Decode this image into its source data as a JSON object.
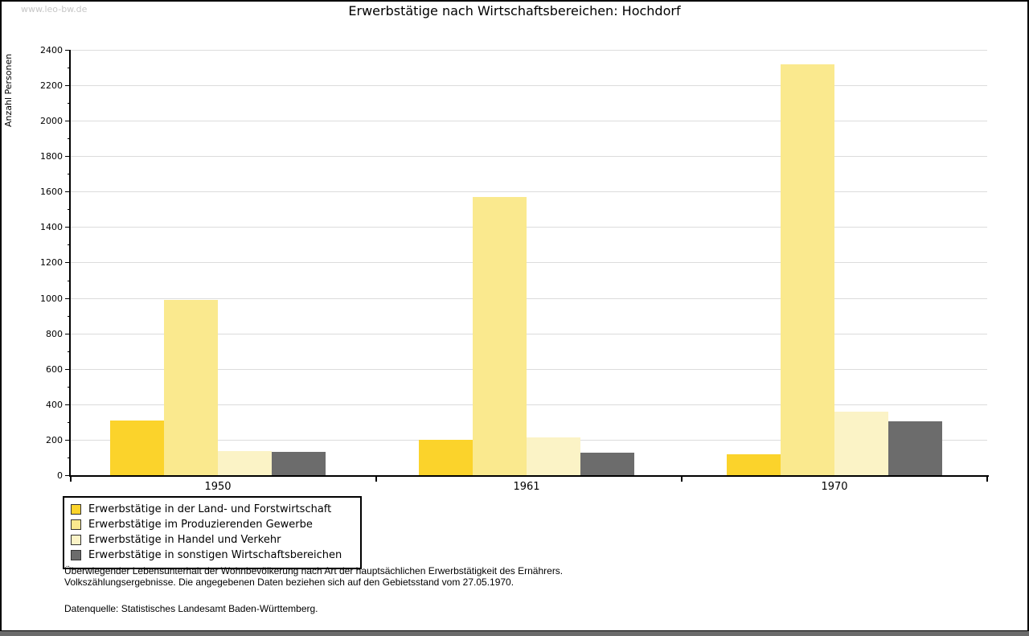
{
  "watermark": "www.leo-bw.de",
  "title": "Erwerbstätige nach Wirtschaftsbereichen: Hochdorf",
  "chart_data": {
    "type": "bar",
    "title": "Erwerbstätige nach Wirtschaftsbereichen: Hochdorf",
    "xlabel": "",
    "ylabel": "Anzahl Personen",
    "ylim": [
      0,
      2400
    ],
    "ytick_step": 200,
    "ytick_minor_step": 100,
    "grid": "horizontal-major",
    "legend_position": "bottom-left",
    "categories": [
      "1950",
      "1961",
      "1970"
    ],
    "series": [
      {
        "name": "Erwerbstätige in der Land- und Forstwirtschaft",
        "color": "#FBD32B",
        "values": [
          310,
          200,
          120
        ]
      },
      {
        "name": "Erwerbstätige im Produzierenden Gewerbe",
        "color": "#FAE98E",
        "values": [
          990,
          1570,
          2320
        ]
      },
      {
        "name": "Erwerbstätige in Handel und Verkehr",
        "color": "#FBF3C6",
        "values": [
          135,
          215,
          360
        ]
      },
      {
        "name": "Erwerbstätige in sonstigen Wirtschaftsbereichen",
        "color": "#6C6C6C",
        "values": [
          130,
          125,
          305
        ]
      }
    ]
  },
  "footer": {
    "line1": "Überwiegender Lebensunterhalt der Wohnbevölkerung nach Art der hauptsächlichen Erwerbstätigkeit des Ernährers.",
    "line2": "Volkszählungsergebnisse. Die angegebenen Daten beziehen sich auf den Gebietsstand vom 27.05.1970.",
    "source": "Datenquelle: Statistisches Landesamt Baden-Württemberg."
  },
  "colors": {
    "gridline": "#dcdcdc",
    "axis": "#000000",
    "watermark": "#c6c6c6",
    "bottom_strip": "#6b6b6b"
  }
}
